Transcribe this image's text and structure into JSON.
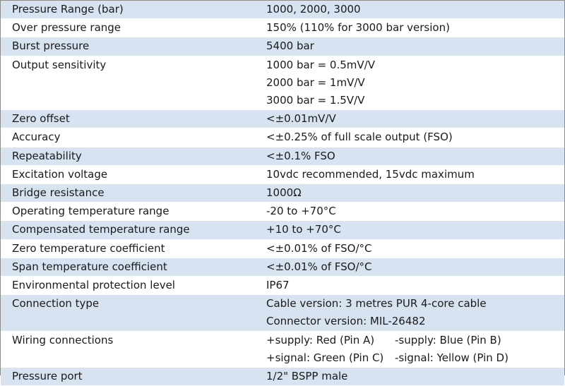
{
  "rows": [
    {
      "label": "Pressure Range (bar)",
      "values": [
        "1000, 2000, 3000"
      ]
    },
    {
      "label": "Over pressure range",
      "values": [
        "150% (110% for 3000 bar version)"
      ]
    },
    {
      "label": "Burst pressure",
      "values": [
        "5400 bar"
      ]
    },
    {
      "label": "Output sensitivity",
      "values": [
        "1000 bar = 0.5mV/V",
        "2000 bar = 1mV/V",
        "3000 bar = 1.5V/V"
      ]
    },
    {
      "label": "Zero offset",
      "values": [
        "<±0.01mV/V"
      ]
    },
    {
      "label": "Accuracy",
      "values": [
        "<±0.25% of full scale output (FSO)"
      ]
    },
    {
      "label": "Repeatability",
      "values": [
        "<±0.1% FSO"
      ]
    },
    {
      "label": "Excitation voltage",
      "values": [
        "10vdc recommended, 15vdc maximum"
      ]
    },
    {
      "label": "Bridge resistance",
      "values": [
        "1000Ω"
      ]
    },
    {
      "label": "Operating temperature range",
      "values": [
        "-20 to +70°C"
      ]
    },
    {
      "label": "Compensated temperature range",
      "values": [
        "+10 to +70°C"
      ]
    },
    {
      "label": "Zero temperature coefficient",
      "values": [
        "<±0.01% of FSO/°C"
      ]
    },
    {
      "label": "Span temperature coefficient",
      "values": [
        "<±0.01% of FSO/°C"
      ]
    },
    {
      "label": "Environmental protection level",
      "values": [
        "IP67"
      ]
    },
    {
      "label": "Connection type",
      "values": [
        "Cable version: 3 metres PUR 4-core cable",
        "Connector version: MIL-26482"
      ]
    },
    {
      "label": "Wiring connections",
      "wiring": [
        [
          "+supply: Red (Pin A)",
          "-supply: Blue (Pin B)"
        ],
        [
          "+signal: Green (Pin C)",
          "-signal: Yellow (Pin D)"
        ]
      ]
    },
    {
      "label": "Pressure port",
      "values": [
        "1/2\" BSPP male"
      ]
    }
  ]
}
